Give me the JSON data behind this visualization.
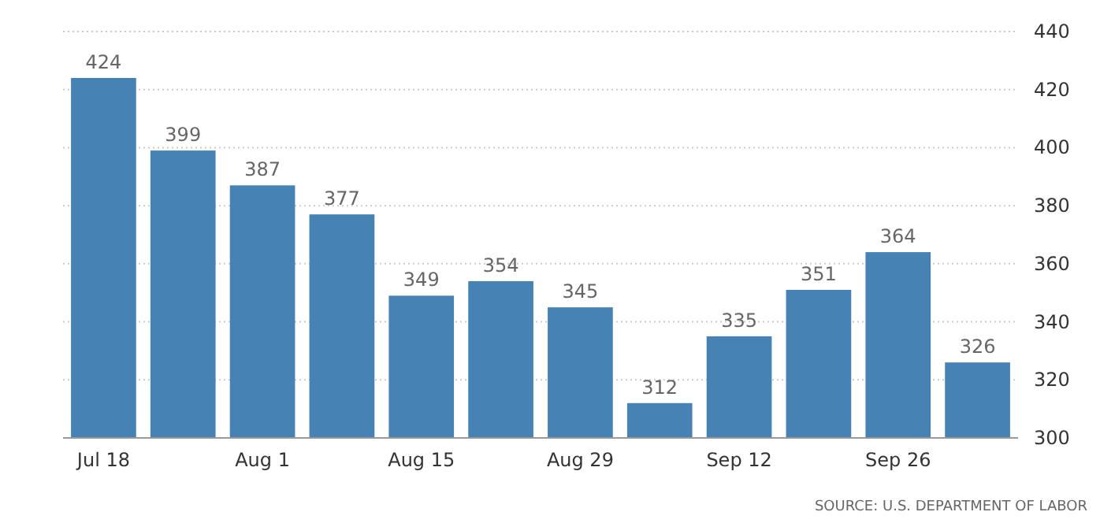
{
  "chart_data": {
    "type": "bar",
    "categories": [
      "Jul 18",
      null,
      "Aug 1",
      null,
      "Aug 15",
      null,
      "Aug 29",
      null,
      "Sep 12",
      null,
      "Sep 26",
      null
    ],
    "values": [
      424,
      399,
      387,
      377,
      349,
      354,
      345,
      312,
      335,
      351,
      364,
      326
    ],
    "color": "#4682b4",
    "ylim": [
      300,
      440
    ],
    "yticks": [
      300,
      320,
      340,
      360,
      380,
      400,
      420,
      440
    ],
    "grid": "y",
    "data_labels": true,
    "annotations": [
      "SOURCE: U.S. DEPARTMENT OF LABOR"
    ]
  }
}
